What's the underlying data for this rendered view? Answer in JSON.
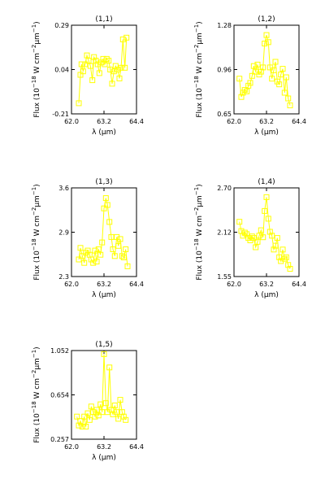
{
  "figure": {
    "xlabel": "λ (μm)",
    "ylabel_parts": [
      "Flux (10",
      "−18",
      " W cm",
      "−2",
      "μm",
      "−1",
      ")"
    ]
  },
  "chart_data": [
    {
      "type": "line",
      "title": "(1,1)",
      "xlabel": "λ (μm)",
      "ylabel": "Flux (10^-18 W cm^-2 μm^-1)",
      "xticks": [
        "62.0",
        "63.2",
        "64.4"
      ],
      "yticks": [
        "0.29",
        "0.04",
        "-0.21"
      ],
      "xlim": [
        62.0,
        64.4
      ],
      "ylim": [
        -0.21,
        0.29
      ],
      "color": "#ffff00",
      "marker": "square",
      "series": [
        {
          "x": [
            62.27,
            62.33,
            62.37,
            62.43,
            62.5,
            62.57,
            62.63,
            62.7,
            62.77,
            62.83,
            62.9,
            62.97,
            63.03,
            63.1,
            63.17,
            63.23,
            63.3,
            63.37,
            63.43,
            63.5,
            63.57,
            63.63,
            63.7,
            63.77,
            63.83,
            63.9,
            63.97,
            64.03
          ],
          "y": [
            -0.15,
            0.01,
            0.07,
            0.03,
            0.07,
            0.12,
            0.09,
            0.06,
            -0.02,
            0.11,
            0.09,
            0.07,
            0.02,
            0.08,
            0.1,
            0.07,
            0.1,
            0.09,
            0.04,
            -0.04,
            0.03,
            0.06,
            0.04,
            -0.01,
            0.05,
            0.21,
            0.05,
            0.22
          ]
        }
      ]
    },
    {
      "type": "line",
      "title": "(1,2)",
      "xlabel": "λ (μm)",
      "ylabel": "Flux (10^-18 W cm^-2 μm^-1)",
      "xticks": [
        "62.0",
        "63.2",
        "64.4"
      ],
      "yticks": [
        "1.28",
        "0.96",
        "0.65"
      ],
      "xlim": [
        62.0,
        64.4
      ],
      "ylim": [
        0.65,
        1.28
      ],
      "color": "#ffff00",
      "marker": "square",
      "series": [
        {
          "x": [
            62.2,
            62.27,
            62.33,
            62.4,
            62.47,
            62.53,
            62.6,
            62.67,
            62.73,
            62.8,
            62.87,
            62.93,
            63.0,
            63.07,
            63.13,
            63.2,
            63.27,
            63.33,
            63.4,
            63.47,
            63.53,
            63.6,
            63.67,
            63.73,
            63.8,
            63.87,
            63.93,
            64.0,
            64.07
          ],
          "y": [
            0.9,
            0.77,
            0.8,
            0.82,
            0.81,
            0.85,
            0.87,
            0.92,
            0.99,
            0.95,
            1.0,
            0.93,
            0.95,
            0.98,
            1.15,
            1.21,
            1.16,
            0.98,
            0.9,
            0.96,
            1.02,
            0.88,
            0.86,
            0.93,
            0.97,
            0.8,
            0.91,
            0.76,
            0.71
          ]
        }
      ]
    },
    {
      "type": "line",
      "title": "(1,3)",
      "xlabel": "λ (μm)",
      "ylabel": "Flux (10^-18 W cm^-2 μm^-1)",
      "xticks": [
        "62.0",
        "63.2",
        "64.4"
      ],
      "yticks": [
        "3.6",
        "2.9",
        "2.3"
      ],
      "xlim": [
        62.0,
        64.4
      ],
      "ylim": [
        2.3,
        3.6
      ],
      "color": "#ffff00",
      "marker": "square",
      "series": [
        {
          "x": [
            62.27,
            62.33,
            62.4,
            62.47,
            62.53,
            62.6,
            62.67,
            62.73,
            62.8,
            62.87,
            62.93,
            63.0,
            63.07,
            63.13,
            63.2,
            63.27,
            63.33,
            63.4,
            63.47,
            63.53,
            63.6,
            63.67,
            63.73,
            63.8,
            63.87,
            63.93,
            64.0,
            64.07
          ],
          "y": [
            2.55,
            2.72,
            2.6,
            2.5,
            2.65,
            2.68,
            2.62,
            2.55,
            2.5,
            2.68,
            2.52,
            2.7,
            2.62,
            2.8,
            3.3,
            3.45,
            3.35,
            3.1,
            2.88,
            2.7,
            2.6,
            2.88,
            2.75,
            2.85,
            2.6,
            2.58,
            2.7,
            2.45
          ]
        }
      ]
    },
    {
      "type": "line",
      "title": "(1,4)",
      "xlabel": "λ (μm)",
      "ylabel": "Flux (10^-18 W cm^-2 μm^-1)",
      "xticks": [
        "62.0",
        "63.2",
        "64.4"
      ],
      "yticks": [
        "2.70",
        "2.12",
        "1.55"
      ],
      "xlim": [
        62.0,
        64.4
      ],
      "ylim": [
        1.55,
        2.7
      ],
      "color": "#ffff00",
      "marker": "square",
      "series": [
        {
          "x": [
            62.2,
            62.27,
            62.33,
            62.4,
            62.47,
            62.53,
            62.6,
            62.67,
            62.73,
            62.8,
            62.87,
            62.93,
            63.0,
            63.07,
            63.13,
            63.2,
            63.27,
            63.33,
            63.4,
            63.47,
            63.53,
            63.6,
            63.67,
            63.73,
            63.8,
            63.87,
            63.93,
            64.0,
            64.07
          ],
          "y": [
            2.26,
            2.14,
            2.08,
            2.12,
            2.1,
            2.05,
            2.02,
            2.07,
            2.05,
            1.93,
            2.0,
            2.08,
            2.15,
            2.06,
            2.4,
            2.58,
            2.3,
            2.13,
            2.08,
            1.9,
            1.95,
            2.05,
            1.8,
            1.75,
            1.9,
            1.78,
            1.8,
            1.7,
            1.65
          ]
        }
      ]
    },
    {
      "type": "line",
      "title": "(1,5)",
      "xlabel": "λ (μm)",
      "ylabel": "Flux (10^-18 W cm^-2 μm^-1)",
      "xticks": [
        "62.0",
        "63.2",
        "64.4"
      ],
      "yticks": [
        "1.052",
        "0.654",
        "0.257"
      ],
      "xlim": [
        62.0,
        64.4
      ],
      "ylim": [
        0.257,
        1.052
      ],
      "color": "#ffff00",
      "marker": "square",
      "series": [
        {
          "x": [
            62.2,
            62.27,
            62.33,
            62.4,
            62.47,
            62.53,
            62.6,
            62.67,
            62.73,
            62.8,
            62.87,
            62.93,
            63.0,
            63.07,
            63.13,
            63.2,
            63.27,
            63.33,
            63.4,
            63.47,
            63.53,
            63.6,
            63.67,
            63.73,
            63.8,
            63.87,
            63.93,
            64.0
          ],
          "y": [
            0.46,
            0.38,
            0.42,
            0.37,
            0.46,
            0.37,
            0.49,
            0.43,
            0.55,
            0.5,
            0.46,
            0.52,
            0.47,
            0.57,
            0.5,
            1.02,
            0.58,
            0.5,
            0.9,
            0.52,
            0.48,
            0.56,
            0.5,
            0.44,
            0.61,
            0.5,
            0.46,
            0.43
          ]
        }
      ]
    }
  ]
}
